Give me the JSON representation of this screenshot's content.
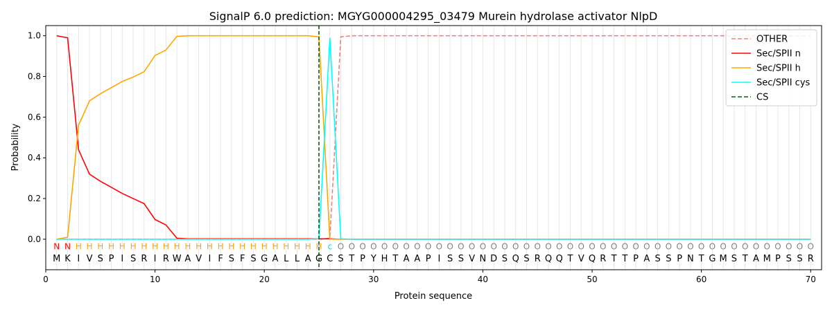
{
  "chart_data": {
    "type": "line",
    "title": "SignalP 6.0 prediction: MGYG000004295_03479 Murein hydrolase activator NlpD",
    "xlabel": "Protein sequence",
    "ylabel": "Probability",
    "xlim": [
      0,
      71
    ],
    "ylim": [
      -0.15,
      1.05
    ],
    "xticks": [
      0,
      10,
      20,
      30,
      40,
      50,
      60,
      70
    ],
    "yticks": [
      0.0,
      0.2,
      0.4,
      0.6,
      0.8,
      1.0
    ],
    "ytick_labels": [
      "0.0",
      "0.2",
      "0.4",
      "0.6",
      "0.8",
      "1.0"
    ],
    "grid": "vertical lines at each residue",
    "legend_position": "top-right",
    "sequence": [
      "M",
      "K",
      "I",
      "V",
      "S",
      "P",
      "I",
      "S",
      "R",
      "I",
      "R",
      "W",
      "A",
      "V",
      "I",
      "F",
      "S",
      "F",
      "S",
      "G",
      "A",
      "L",
      "L",
      "A",
      "G",
      "C",
      "S",
      "T",
      "P",
      "Y",
      "H",
      "T",
      "A",
      "A",
      "P",
      "I",
      "S",
      "S",
      "V",
      "N",
      "D",
      "S",
      "Q",
      "S",
      "R",
      "Q",
      "Q",
      "T",
      "V",
      "Q",
      "R",
      "T",
      "T",
      "P",
      "A",
      "S",
      "S",
      "P",
      "N",
      "T",
      "G",
      "M",
      "S",
      "T",
      "A",
      "M",
      "P",
      "S",
      "S",
      "R"
    ],
    "region_labels": [
      "N",
      "N",
      "H",
      "H",
      "H",
      "H",
      "H",
      "H",
      "H",
      "H",
      "H",
      "H",
      "H",
      "H",
      "H",
      "H",
      "H",
      "H",
      "H",
      "H",
      "H",
      "H",
      "H",
      "H",
      "H",
      "c",
      "O",
      "O",
      "O",
      "O",
      "O",
      "O",
      "O",
      "O",
      "O",
      "O",
      "O",
      "O",
      "O",
      "O",
      "O",
      "O",
      "O",
      "O",
      "O",
      "O",
      "O",
      "O",
      "O",
      "O",
      "O",
      "O",
      "O",
      "O",
      "O",
      "O",
      "O",
      "O",
      "O",
      "O",
      "O",
      "O",
      "O",
      "O",
      "O",
      "O",
      "O",
      "O",
      "O",
      "O"
    ],
    "region_colors": {
      "N": "#ff0000",
      "H": "#ffa500",
      "c": "#00e5e5",
      "O": "#808080"
    },
    "cleavage_site": 25,
    "series": [
      {
        "name": "OTHER",
        "color": "#f08080",
        "style": "dashed",
        "values": [
          0,
          0,
          0,
          0,
          0,
          0,
          0,
          0,
          0,
          0,
          0,
          0,
          0,
          0,
          0,
          0,
          0,
          0,
          0,
          0,
          0,
          0,
          0,
          0,
          0,
          0.005,
          0.995,
          1,
          1,
          1,
          1,
          1,
          1,
          1,
          1,
          1,
          1,
          1,
          1,
          1,
          1,
          1,
          1,
          1,
          1,
          1,
          1,
          1,
          1,
          1,
          1,
          1,
          1,
          1,
          1,
          1,
          1,
          1,
          1,
          1,
          1,
          1,
          1,
          1,
          1,
          1,
          1,
          1,
          1,
          1
        ]
      },
      {
        "name": "Sec/SPII n",
        "color": "#ff0000",
        "style": "solid",
        "values": [
          1.0,
          0.99,
          0.44,
          0.32,
          0.285,
          0.255,
          0.225,
          0.2,
          0.175,
          0.097,
          0.07,
          0.005,
          0.002,
          0.002,
          0.002,
          0.002,
          0.002,
          0.002,
          0.002,
          0.002,
          0.002,
          0.002,
          0.002,
          0.002,
          0.002,
          0.002,
          0,
          0,
          0,
          0,
          0,
          0,
          0,
          0,
          0,
          0,
          0,
          0,
          0,
          0,
          0,
          0,
          0,
          0,
          0,
          0,
          0,
          0,
          0,
          0,
          0,
          0,
          0,
          0,
          0,
          0,
          0,
          0,
          0,
          0,
          0,
          0,
          0,
          0,
          0,
          0,
          0,
          0,
          0,
          0
        ]
      },
      {
        "name": "Sec/SPII h",
        "color": "#ffa500",
        "style": "solid",
        "values": [
          0,
          0.01,
          0.56,
          0.68,
          0.715,
          0.745,
          0.775,
          0.797,
          0.823,
          0.903,
          0.93,
          0.997,
          1,
          1,
          1,
          1,
          1,
          1,
          1,
          1,
          1,
          1,
          1,
          1,
          0.995,
          0,
          0,
          0,
          0,
          0,
          0,
          0,
          0,
          0,
          0,
          0,
          0,
          0,
          0,
          0,
          0,
          0,
          0,
          0,
          0,
          0,
          0,
          0,
          0,
          0,
          0,
          0,
          0,
          0,
          0,
          0,
          0,
          0,
          0,
          0,
          0,
          0,
          0,
          0,
          0,
          0,
          0,
          0,
          0,
          0
        ]
      },
      {
        "name": "Sec/SPII cys",
        "color": "#00ffff",
        "style": "solid",
        "values": [
          0,
          0,
          0,
          0,
          0,
          0,
          0,
          0,
          0,
          0,
          0,
          0,
          0,
          0,
          0,
          0,
          0,
          0,
          0,
          0,
          0,
          0,
          0,
          0,
          0.002,
          0.99,
          0.002,
          0,
          0,
          0,
          0,
          0,
          0,
          0,
          0,
          0,
          0,
          0,
          0,
          0,
          0,
          0,
          0,
          0,
          0,
          0,
          0,
          0,
          0,
          0,
          0,
          0,
          0,
          0,
          0,
          0,
          0,
          0,
          0,
          0,
          0,
          0,
          0,
          0,
          0,
          0,
          0,
          0,
          0,
          0
        ]
      },
      {
        "name": "CS",
        "color": "#006400",
        "style": "dashed",
        "values": []
      }
    ]
  }
}
